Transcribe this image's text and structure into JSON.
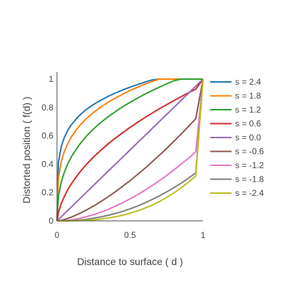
{
  "chart_data": {
    "type": "line",
    "title": "",
    "xlabel": "Distance to surface ( d )",
    "ylabel": "Distorted position ( f(d) )",
    "xlim": [
      0,
      1
    ],
    "ylim": [
      0,
      1
    ],
    "grid": false,
    "legend_placement": "right",
    "x_ticks": [
      0,
      0.5,
      1
    ],
    "x_tick_labels": [
      "0",
      "0.5",
      "1"
    ],
    "y_ticks": [
      0,
      0.2,
      0.4,
      0.6,
      0.8,
      1
    ],
    "y_tick_labels": [
      "0",
      "0.2",
      "0.4",
      "0.6",
      "0.8",
      "1"
    ],
    "x": [
      0,
      0.01,
      0.03,
      0.05,
      0.075,
      0.1,
      0.15,
      0.2,
      0.25,
      0.3,
      0.35,
      0.4,
      0.45,
      0.5,
      0.55,
      0.6,
      0.65,
      0.7,
      0.75,
      0.8,
      0.85,
      0.9,
      0.95,
      1
    ],
    "series": [
      {
        "name": "s = 2.4",
        "color": "#1f77b4",
        "values": [
          0,
          0.415,
          0.528,
          0.588,
          0.641,
          0.681,
          0.74,
          0.785,
          0.821,
          0.851,
          0.878,
          0.902,
          0.923,
          0.943,
          0.961,
          0.978,
          0.994,
          1.009,
          1.023,
          1.036,
          1.049,
          1.061,
          1.073,
          1.0
        ]
      },
      {
        "name": "s = 1.8",
        "color": "#ff7f0e",
        "values": [
          0,
          0.305,
          0.421,
          0.488,
          0.548,
          0.596,
          0.666,
          0.72,
          0.765,
          0.803,
          0.837,
          0.867,
          0.894,
          0.919,
          0.942,
          0.963,
          0.983,
          1.002,
          1.02,
          1.037,
          1.053,
          1.068,
          1.083,
          1.0
        ]
      },
      {
        "name": "s = 1.2",
        "color": "#2ca02c",
        "values": [
          0,
          0.175,
          0.278,
          0.342,
          0.405,
          0.455,
          0.533,
          0.596,
          0.648,
          0.694,
          0.734,
          0.771,
          0.805,
          0.836,
          0.865,
          0.893,
          0.918,
          0.943,
          0.966,
          0.988,
          1.009,
          1.029,
          1.049,
          1.0
        ]
      },
      {
        "name": "s = 0.6",
        "color": "#d62728",
        "values": [
          0,
          0.06,
          0.124,
          0.171,
          0.222,
          0.264,
          0.336,
          0.397,
          0.45,
          0.498,
          0.543,
          0.584,
          0.622,
          0.659,
          0.694,
          0.727,
          0.759,
          0.79,
          0.819,
          0.848,
          0.876,
          0.903,
          0.929,
          1.0
        ]
      },
      {
        "name": "s = 0.0",
        "color": "#9467bd",
        "values": [
          0,
          0.01,
          0.03,
          0.05,
          0.075,
          0.1,
          0.15,
          0.2,
          0.25,
          0.3,
          0.35,
          0.4,
          0.45,
          0.5,
          0.55,
          0.6,
          0.65,
          0.7,
          0.75,
          0.8,
          0.85,
          0.9,
          0.95,
          1.0
        ]
      },
      {
        "name": "s = -0.6",
        "color": "#8c564b",
        "values": [
          0,
          0.0007,
          0.0042,
          0.0095,
          0.0178,
          0.0275,
          0.05,
          0.076,
          0.104,
          0.136,
          0.17,
          0.206,
          0.244,
          0.284,
          0.326,
          0.369,
          0.415,
          0.462,
          0.51,
          0.561,
          0.612,
          0.666,
          0.721,
          1.0
        ]
      },
      {
        "name": "s = -1.2",
        "color": "#e377c2",
        "values": [
          0,
          4e-05,
          0.0006,
          0.0018,
          0.0042,
          0.0076,
          0.0167,
          0.029,
          0.044,
          0.061,
          0.081,
          0.104,
          0.128,
          0.155,
          0.184,
          0.215,
          0.248,
          0.283,
          0.32,
          0.359,
          0.4,
          0.442,
          0.487,
          1.0
        ]
      },
      {
        "name": "s = -1.8",
        "color": "#7f7f7f",
        "values": [
          0,
          0,
          8e-05,
          0.0004,
          0.001,
          0.0021,
          0.0056,
          0.011,
          0.019,
          0.028,
          0.039,
          0.052,
          0.067,
          0.085,
          0.104,
          0.126,
          0.15,
          0.176,
          0.204,
          0.234,
          0.266,
          0.301,
          0.338,
          1.0
        ]
      },
      {
        "name": "s = -2.4",
        "color": "#bcbd22",
        "values": [
          0,
          0,
          1e-05,
          8e-05,
          0.0002,
          0.0006,
          0.0019,
          0.0042,
          0.0078,
          0.013,
          0.02,
          0.029,
          0.04,
          0.054,
          0.07,
          0.089,
          0.111,
          0.136,
          0.165,
          0.197,
          0.233,
          0.273,
          0.317,
          1.0
        ]
      }
    ]
  }
}
